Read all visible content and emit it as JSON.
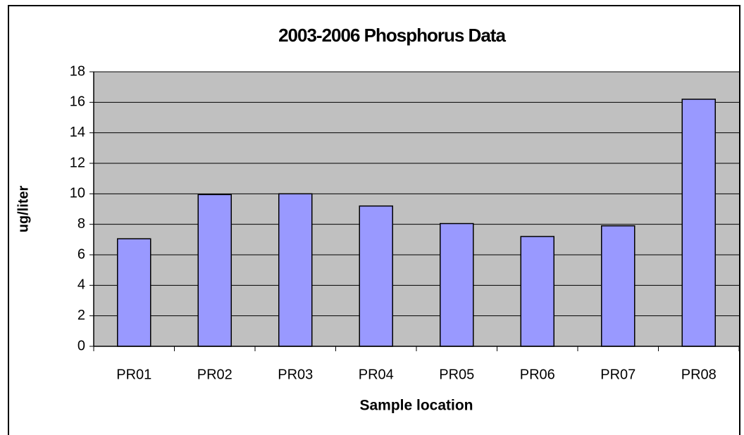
{
  "chart_data": {
    "type": "bar",
    "title": "2003-2006 Phosphorus Data",
    "x_label": "Sample location",
    "y_label": "ug/liter",
    "categories": [
      "PR01",
      "PR02",
      "PR03",
      "PR04",
      "PR05",
      "PR06",
      "PR07",
      "PR08"
    ],
    "values": [
      7.05,
      9.95,
      10.0,
      9.2,
      8.05,
      7.2,
      7.9,
      16.2
    ],
    "color": "#9999ff",
    "ylim": [
      0,
      18
    ],
    "yticks": [
      0,
      2,
      4,
      6,
      8,
      10,
      12,
      14,
      16,
      18
    ],
    "grid": true
  }
}
